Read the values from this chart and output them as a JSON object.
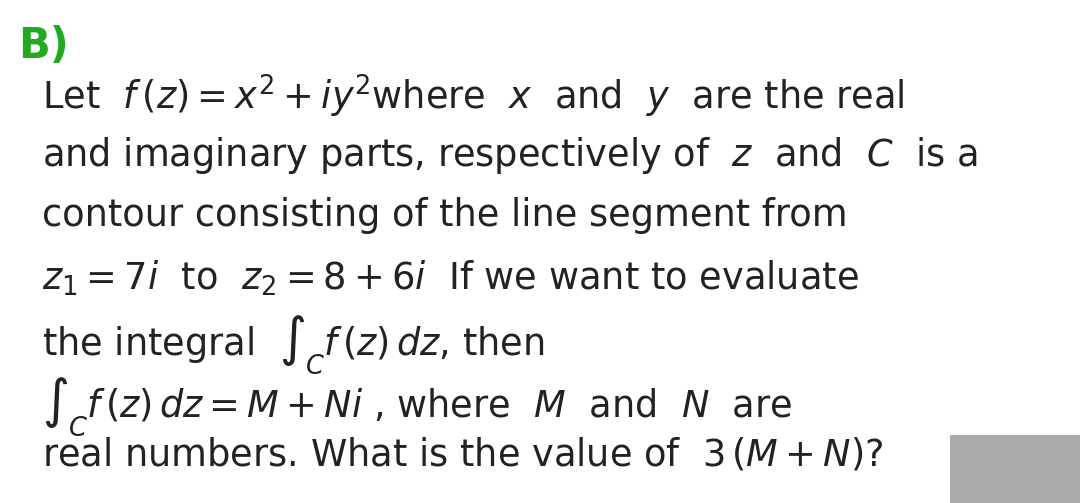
{
  "background_color": "#ffffff",
  "label_B": "B)",
  "label_B_color": "#22aa22",
  "text_color": "#222222",
  "gray_box_color": "#aaaaaa",
  "fontsize": 26.5,
  "B_fontsize": 30,
  "lines": [
    "Let  $f\\,(z) = x^2 + iy^2$where  $x$  and  $y$  are the real",
    "and imaginary parts, respectively of  $z$  and  $C$  is a",
    "contour consisting of the line segment from",
    "$z_1 = 7i$  to  $z_2 = 8+6i$  If we want to evaluate",
    "the integral  $\\int_C f\\,(z)\\,dz$, then",
    "$\\int_C f\\,(z)\\,dz = M + Ni$ , where  $M$  and  $N$  are",
    "real numbers. What is the value of  $3\\,(M + N)$?"
  ]
}
